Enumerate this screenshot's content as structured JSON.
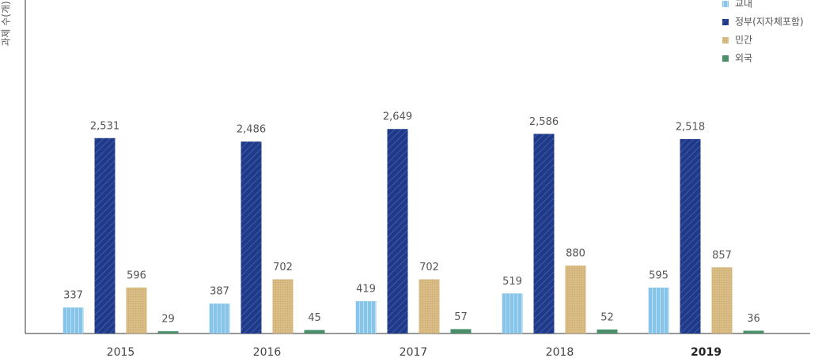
{
  "chart_data": {
    "type": "bar",
    "y_label": "과제 수(개)",
    "categories": [
      "2015",
      "2016",
      "2017",
      "2018",
      "2019"
    ],
    "series": [
      {
        "name": "교내",
        "color": "#86c5e9",
        "values": [
          337,
          387,
          419,
          519,
          595
        ]
      },
      {
        "name": "정부(지자체포함)",
        "color": "#1f3a8a",
        "values": [
          2531,
          2486,
          2649,
          2586,
          2518
        ],
        "value_labels": [
          "2,531",
          "2,486",
          "2,649",
          "2,586",
          "2,518"
        ]
      },
      {
        "name": "민간",
        "color": "#d9bb84",
        "values": [
          596,
          702,
          702,
          880,
          857
        ]
      },
      {
        "name": "외국",
        "color": "#4a8f6a",
        "values": [
          29,
          45,
          57,
          52,
          36
        ]
      }
    ],
    "ylim": [
      0,
      4320
    ],
    "legend": "top-right"
  }
}
